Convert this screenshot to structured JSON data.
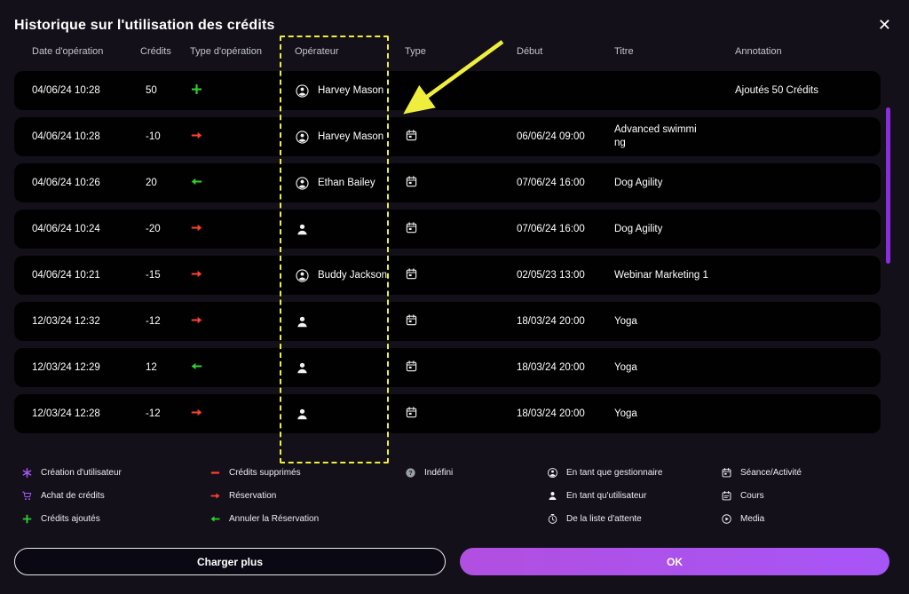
{
  "modal": {
    "title": "Historique sur l'utilisation des crédits",
    "close_label": "✕"
  },
  "table": {
    "headers": {
      "date": "Date d'opération",
      "credits": "Crédits",
      "op_type": "Type d'opération",
      "operator": "Opérateur",
      "type": "Type",
      "start": "Début",
      "title": "Titre",
      "annotation": "Annotation"
    },
    "rows": [
      {
        "date": "04/06/24 10:28",
        "credits": "50",
        "op_icon": "plus",
        "operator_icon": "manager",
        "operator": "Harvey Mason",
        "type_icon": "none",
        "start": "",
        "title": "",
        "annotation": "Ajoutés 50 Crédits"
      },
      {
        "date": "04/06/24 10:28",
        "credits": "-10",
        "op_icon": "arrow-right",
        "operator_icon": "manager",
        "operator": "Harvey Mason",
        "type_icon": "calendar",
        "start": "06/06/24 09:00",
        "title": "Advanced swimming",
        "annotation": "",
        "wrap": true
      },
      {
        "date": "04/06/24 10:26",
        "credits": "20",
        "op_icon": "arrow-left",
        "operator_icon": "manager",
        "operator": "Ethan Bailey",
        "type_icon": "calendar",
        "start": "07/06/24 16:00",
        "title": "Dog Agility",
        "annotation": ""
      },
      {
        "date": "04/06/24 10:24",
        "credits": "-20",
        "op_icon": "arrow-right",
        "operator_icon": "user",
        "operator": "",
        "type_icon": "calendar",
        "start": "07/06/24 16:00",
        "title": "Dog Agility",
        "annotation": ""
      },
      {
        "date": "04/06/24 10:21",
        "credits": "-15",
        "op_icon": "arrow-right",
        "operator_icon": "manager",
        "operator": "Buddy Jackson",
        "type_icon": "calendar",
        "start": "02/05/23 13:00",
        "title": "Webinar Marketing 1",
        "annotation": ""
      },
      {
        "date": "12/03/24 12:32",
        "credits": "-12",
        "op_icon": "arrow-right",
        "operator_icon": "user",
        "operator": "",
        "type_icon": "calendar",
        "start": "18/03/24 20:00",
        "title": "Yoga",
        "annotation": ""
      },
      {
        "date": "12/03/24 12:29",
        "credits": "12",
        "op_icon": "arrow-left",
        "operator_icon": "user",
        "operator": "",
        "type_icon": "calendar",
        "start": "18/03/24 20:00",
        "title": "Yoga",
        "annotation": ""
      },
      {
        "date": "12/03/24 12:28",
        "credits": "-12",
        "op_icon": "arrow-right",
        "operator_icon": "user",
        "operator": "",
        "type_icon": "calendar",
        "start": "18/03/24 20:00",
        "title": "Yoga",
        "annotation": ""
      }
    ]
  },
  "legend": {
    "columns": [
      {
        "items": [
          {
            "icon": "user-star",
            "label": "Création d'utilisateur"
          },
          {
            "icon": "cart",
            "label": "Achat de crédits"
          },
          {
            "icon": "plus",
            "label": "Crédits ajoutés"
          }
        ]
      },
      {
        "items": [
          {
            "icon": "minus",
            "label": "Crédits supprimés"
          },
          {
            "icon": "arrow-right",
            "label": "Réservation"
          },
          {
            "icon": "arrow-left",
            "label": "Annuler la Réservation"
          }
        ]
      },
      {
        "items": [
          {
            "icon": "question",
            "label": "Indéfini"
          }
        ]
      },
      {
        "items": [
          {
            "icon": "manager",
            "label": "En tant que gestionnaire"
          },
          {
            "icon": "user",
            "label": "En tant qu'utilisateur"
          },
          {
            "icon": "clock",
            "label": "De la liste d'attente"
          }
        ]
      },
      {
        "items": [
          {
            "icon": "calendar",
            "label": "Séance/Activité"
          },
          {
            "icon": "calendar-lines",
            "label": "Cours"
          },
          {
            "icon": "play",
            "label": "Media"
          }
        ]
      }
    ]
  },
  "footer": {
    "load_more_label": "Charger plus",
    "ok_label": "OK"
  },
  "annotations": {
    "highlight_color": "#f0ee3c",
    "highlighted_column": "Opérateur"
  },
  "colors": {
    "positive": "#2fd12f",
    "negative": "#ff4030",
    "accent": "#a855f7",
    "scrollbar": "#8a2ce2",
    "gray": "#9aa0a8"
  }
}
